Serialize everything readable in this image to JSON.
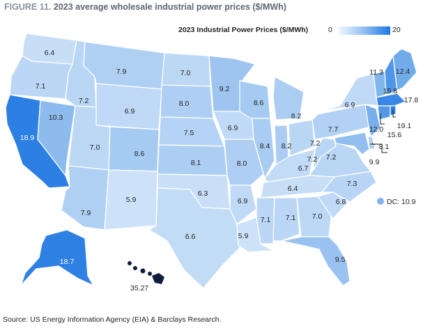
{
  "header": {
    "figure_label": "FIGURE 11.",
    "title": "2023 average wholesale industrial power prices ($/MWh)"
  },
  "legend": {
    "title": "2023 Industrial Power Prices ($/MWh)",
    "min": "0",
    "max": "20",
    "scale_colors": [
      "#eef5ff",
      "#a6cbf2",
      "#1e78e6"
    ]
  },
  "source": "Source: US Energy Information Agency (EIA) & Barclays Research.",
  "dc": {
    "value": 10.9,
    "label": "DC: 10.9",
    "color": "#7fb3ec"
  },
  "states": [
    {
      "id": "WA",
      "value": 6.4,
      "label": "6.4",
      "color": "#c7def7"
    },
    {
      "id": "OR",
      "value": 7.1,
      "label": "7.1",
      "color": "#bcd7f5"
    },
    {
      "id": "CA",
      "value": 18.9,
      "label": "18.9",
      "color": "#2c7fe3"
    },
    {
      "id": "NV",
      "value": 10.3,
      "label": "10.3",
      "color": "#8ebbee"
    },
    {
      "id": "ID",
      "value": 7.2,
      "label": "7.2",
      "color": "#bad6f5"
    },
    {
      "id": "MT",
      "value": 7.9,
      "label": "7.9",
      "color": "#b0d0f3"
    },
    {
      "id": "WY",
      "value": 6.9,
      "label": "6.9",
      "color": "#bfd9f6"
    },
    {
      "id": "UT",
      "value": 7.0,
      "label": "7.0",
      "color": "#bdd8f5"
    },
    {
      "id": "AZ",
      "value": 7.9,
      "label": "7.9",
      "color": "#b0d0f3"
    },
    {
      "id": "CO",
      "value": 8.6,
      "label": "8.6",
      "color": "#a6cbf2"
    },
    {
      "id": "NM",
      "value": 5.9,
      "label": "5.9",
      "color": "#cde2f8"
    },
    {
      "id": "ND",
      "value": 7.0,
      "label": "7.0",
      "color": "#bdd8f5"
    },
    {
      "id": "SD",
      "value": 8.0,
      "label": "8.0",
      "color": "#aecff3"
    },
    {
      "id": "NE",
      "value": 7.5,
      "label": "7.5",
      "color": "#b5d3f4"
    },
    {
      "id": "KS",
      "value": 8.1,
      "label": "8.1",
      "color": "#adcef3"
    },
    {
      "id": "OK",
      "value": 6.3,
      "label": "6.3",
      "color": "#c8dff7"
    },
    {
      "id": "TX",
      "value": 6.6,
      "label": "6.6",
      "color": "#c3dcf6"
    },
    {
      "id": "MN",
      "value": 9.2,
      "label": "9.2",
      "color": "#9dc5f0"
    },
    {
      "id": "IA",
      "value": 6.9,
      "label": "6.9",
      "color": "#bfd9f6"
    },
    {
      "id": "MO",
      "value": 8.0,
      "label": "8.0",
      "color": "#aecff3"
    },
    {
      "id": "AR",
      "value": 6.9,
      "label": "6.9",
      "color": "#bfd9f6"
    },
    {
      "id": "LA",
      "value": 5.9,
      "label": "5.9",
      "color": "#cde2f8"
    },
    {
      "id": "WI",
      "value": 8.6,
      "label": "8.6",
      "color": "#a6cbf2"
    },
    {
      "id": "IL",
      "value": 8.4,
      "label": "8.4",
      "color": "#a9ccf2"
    },
    {
      "id": "MI",
      "value": 8.2,
      "label": "8.2",
      "color": "#abcdf2"
    },
    {
      "id": "IN",
      "value": 8.2,
      "label": "8.2",
      "color": "#abcdf2"
    },
    {
      "id": "OH",
      "value": 7.2,
      "label": "7.2",
      "color": "#bad6f5"
    },
    {
      "id": "KY",
      "value": 6.7,
      "label": "6.7",
      "color": "#c2dbf6"
    },
    {
      "id": "TN",
      "value": 6.4,
      "label": "6.4",
      "color": "#c7def7"
    },
    {
      "id": "MS",
      "value": 7.1,
      "label": "7.1",
      "color": "#bcd7f5"
    },
    {
      "id": "AL",
      "value": 7.1,
      "label": "7.1",
      "color": "#bcd7f5"
    },
    {
      "id": "GA",
      "value": 7.0,
      "label": "7.0",
      "color": "#bdd8f5"
    },
    {
      "id": "FL",
      "value": 9.5,
      "label": "9.5",
      "color": "#99c2f0"
    },
    {
      "id": "SC",
      "value": 6.8,
      "label": "6.8",
      "color": "#c0daf6"
    },
    {
      "id": "NC",
      "value": 7.3,
      "label": "7.3",
      "color": "#b9d5f5"
    },
    {
      "id": "VA",
      "value": 7.2,
      "label": "7.2",
      "color": "#bad6f5"
    },
    {
      "id": "WV",
      "value": 7.2,
      "label": "7.2",
      "color": "#bad6f5"
    },
    {
      "id": "PA",
      "value": 7.7,
      "label": "7.7",
      "color": "#b2d1f4"
    },
    {
      "id": "NY",
      "value": 6.9,
      "label": "6.9",
      "color": "#bfd9f6"
    },
    {
      "id": "VT",
      "value": 11.3,
      "label": "11.3",
      "color": "#82b5ec"
    },
    {
      "id": "NH",
      "value": 15.8,
      "label": "15.8",
      "color": "#4f96e6"
    },
    {
      "id": "ME",
      "value": 12.4,
      "label": "12.4",
      "color": "#72abea"
    },
    {
      "id": "MA",
      "value": 17.8,
      "label": "17.8",
      "color": "#3987e4"
    },
    {
      "id": "RI",
      "value": 19.1,
      "label": "19.1",
      "color": "#2a7de3"
    },
    {
      "id": "CT",
      "value": 15.6,
      "label": "15.6",
      "color": "#5298e7"
    },
    {
      "id": "NJ",
      "value": 12.0,
      "label": "12.0",
      "color": "#78afeb"
    },
    {
      "id": "DE",
      "value": 8.1,
      "label": "8.1",
      "color": "#adcef3"
    },
    {
      "id": "MD",
      "value": 9.9,
      "label": "9.9",
      "color": "#93bef0"
    },
    {
      "id": "AK",
      "value": 18.7,
      "label": "18.7",
      "color": "#2e80e3"
    },
    {
      "id": "HI",
      "value": 35.27,
      "label": "35.27",
      "color": "#0f1d3d"
    }
  ]
}
